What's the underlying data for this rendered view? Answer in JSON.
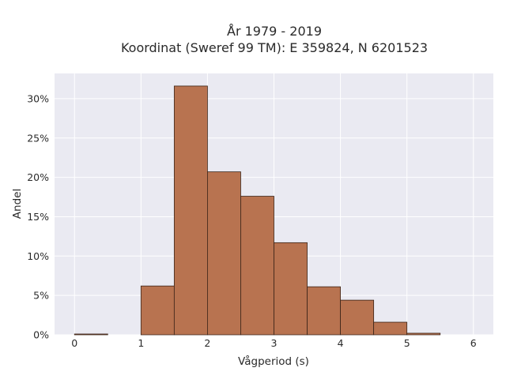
{
  "chart_data": {
    "type": "bar",
    "title_line1": "År 1979 - 2019",
    "title_line2": "Koordinat (Sweref 99 TM): E 359824, N 6201523",
    "xlabel": "Vågperiod (s)",
    "ylabel": "Andel",
    "bins": [
      {
        "x0": 0.0,
        "x1": 0.5,
        "value": 0.1
      },
      {
        "x0": 0.5,
        "x1": 1.0,
        "value": 0.0
      },
      {
        "x0": 1.0,
        "x1": 1.5,
        "value": 6.2
      },
      {
        "x0": 1.5,
        "x1": 2.0,
        "value": 31.6
      },
      {
        "x0": 2.0,
        "x1": 2.5,
        "value": 20.7
      },
      {
        "x0": 2.5,
        "x1": 3.0,
        "value": 17.6
      },
      {
        "x0": 3.0,
        "x1": 3.5,
        "value": 11.7
      },
      {
        "x0": 3.5,
        "x1": 4.0,
        "value": 6.1
      },
      {
        "x0": 4.0,
        "x1": 4.5,
        "value": 4.4
      },
      {
        "x0": 4.5,
        "x1": 5.0,
        "value": 1.6
      },
      {
        "x0": 5.0,
        "x1": 5.5,
        "value": 0.2
      }
    ],
    "xticks": [
      {
        "value": 0,
        "label": "0"
      },
      {
        "value": 1,
        "label": "1"
      },
      {
        "value": 2,
        "label": "2"
      },
      {
        "value": 3,
        "label": "3"
      },
      {
        "value": 4,
        "label": "4"
      },
      {
        "value": 5,
        "label": "5"
      },
      {
        "value": 6,
        "label": "6"
      }
    ],
    "yticks": [
      {
        "value": 0,
        "label": "0%"
      },
      {
        "value": 5,
        "label": "5%"
      },
      {
        "value": 10,
        "label": "10%"
      },
      {
        "value": 15,
        "label": "15%"
      },
      {
        "value": 20,
        "label": "20%"
      },
      {
        "value": 25,
        "label": "25%"
      },
      {
        "value": 30,
        "label": "30%"
      }
    ],
    "xlim": [
      -0.3,
      6.3
    ],
    "ylim": [
      0,
      33.2
    ],
    "grid": true,
    "legend": false,
    "colors": {
      "bar_fill": "#b87350",
      "bar_stroke": "#3a2418",
      "plot_background": "#eaeaf2",
      "grid": "#ffffff"
    }
  }
}
